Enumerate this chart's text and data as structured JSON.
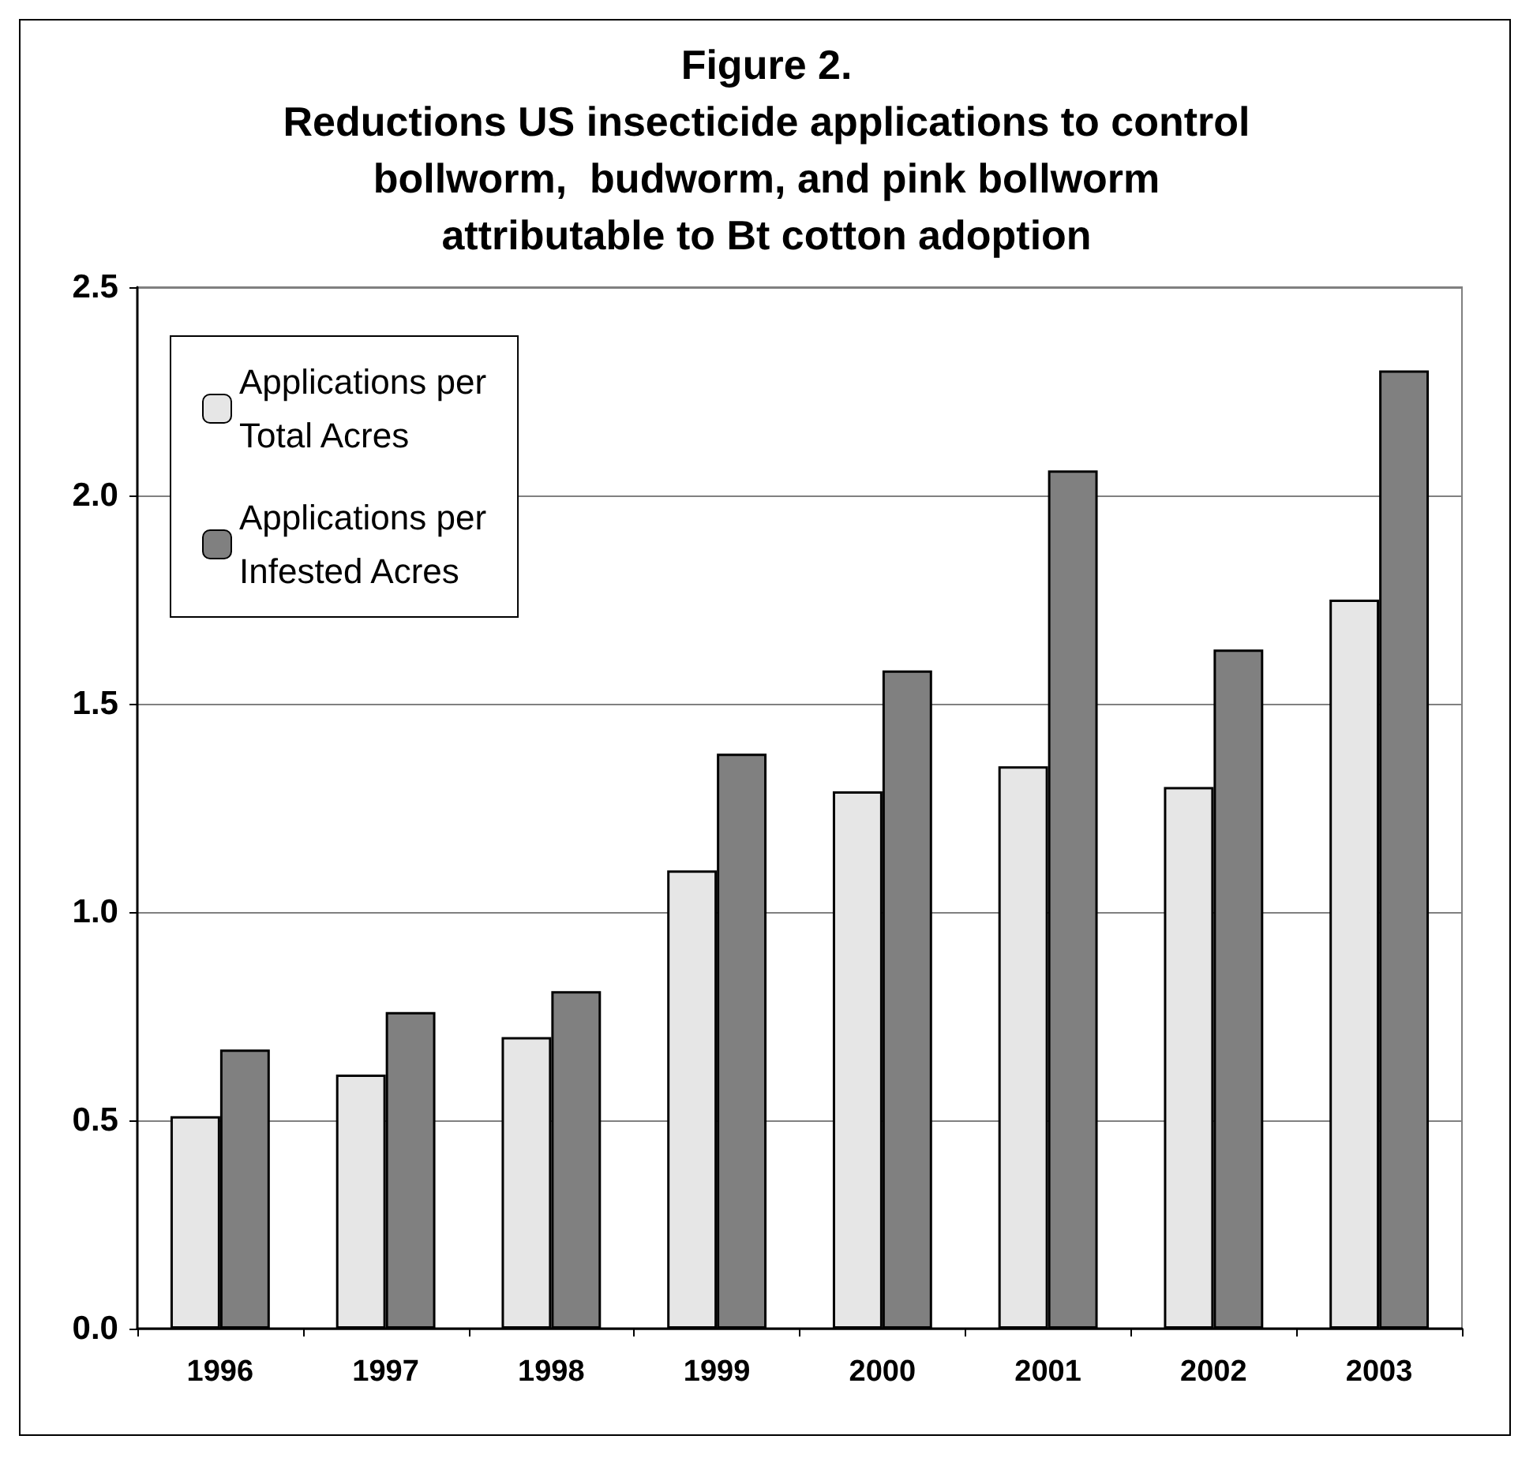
{
  "chart_data": {
    "type": "bar",
    "title": "Figure 2.\nReductions US insecticide applications to control\nbollworm,  budworm, and pink bollworm\nattributable to Bt cotton adoption",
    "categories": [
      "1996",
      "1997",
      "1998",
      "1999",
      "2000",
      "2001",
      "2002",
      "2003"
    ],
    "series": [
      {
        "name": "Applications per\nTotal Acres",
        "color": "#e6e6e6",
        "values": [
          0.51,
          0.61,
          0.7,
          1.1,
          1.29,
          1.35,
          1.3,
          1.75
        ]
      },
      {
        "name": "Applications per\nInfested Acres",
        "color": "#808080",
        "values": [
          0.67,
          0.76,
          0.81,
          1.38,
          1.58,
          2.06,
          1.63,
          2.3
        ]
      }
    ],
    "ylim": [
      0,
      2.5
    ],
    "yticks": [
      {
        "value": 0,
        "label": "0.0"
      },
      {
        "value": 0.5,
        "label": "0.5"
      },
      {
        "value": 1,
        "label": "1.0"
      },
      {
        "value": 1.5,
        "label": "1.5"
      },
      {
        "value": 2,
        "label": "2.0"
      },
      {
        "value": 2.5,
        "label": "2.5"
      }
    ],
    "grid": "y",
    "legend": "top left"
  }
}
